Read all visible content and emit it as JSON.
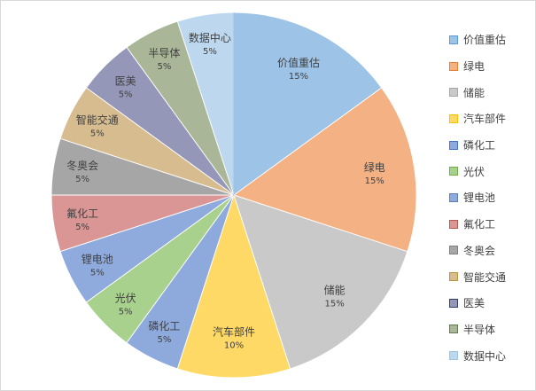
{
  "chart_data": {
    "type": "pie",
    "categories": [
      "价值重估",
      "绿电",
      "储能",
      "汽车部件",
      "磷化工",
      "光伏",
      "锂电池",
      "氟化工",
      "冬奥会",
      "智能交通",
      "医美",
      "半导体",
      "数据中心"
    ],
    "values": [
      15,
      15,
      15,
      10,
      5,
      5,
      5,
      5,
      5,
      5,
      5,
      5,
      5
    ],
    "value_labels": [
      "15%",
      "15%",
      "15%",
      "10%",
      "5%",
      "5%",
      "5%",
      "5%",
      "5%",
      "5%",
      "5%",
      "5%",
      "5%"
    ],
    "colors": [
      "#9dc3e6",
      "#f4b183",
      "#c9c9c9",
      "#ffd966",
      "#8ea9db",
      "#a9d18e",
      "#8faadc",
      "#d99694",
      "#a6a6a6",
      "#d6bc8f",
      "#9497b7",
      "#a9b798",
      "#bdd7ee"
    ],
    "edge_colors": [
      "#5b9bd5",
      "#ed7d31",
      "#a5a5a5",
      "#ffc000",
      "#4472c4",
      "#70ad47",
      "#5b7fb0",
      "#b55a4e",
      "#7f7f7f",
      "#b8923f",
      "#2f3e6b",
      "#5f7a50",
      "#9dc3e6"
    ],
    "legend_placement": "right"
  }
}
